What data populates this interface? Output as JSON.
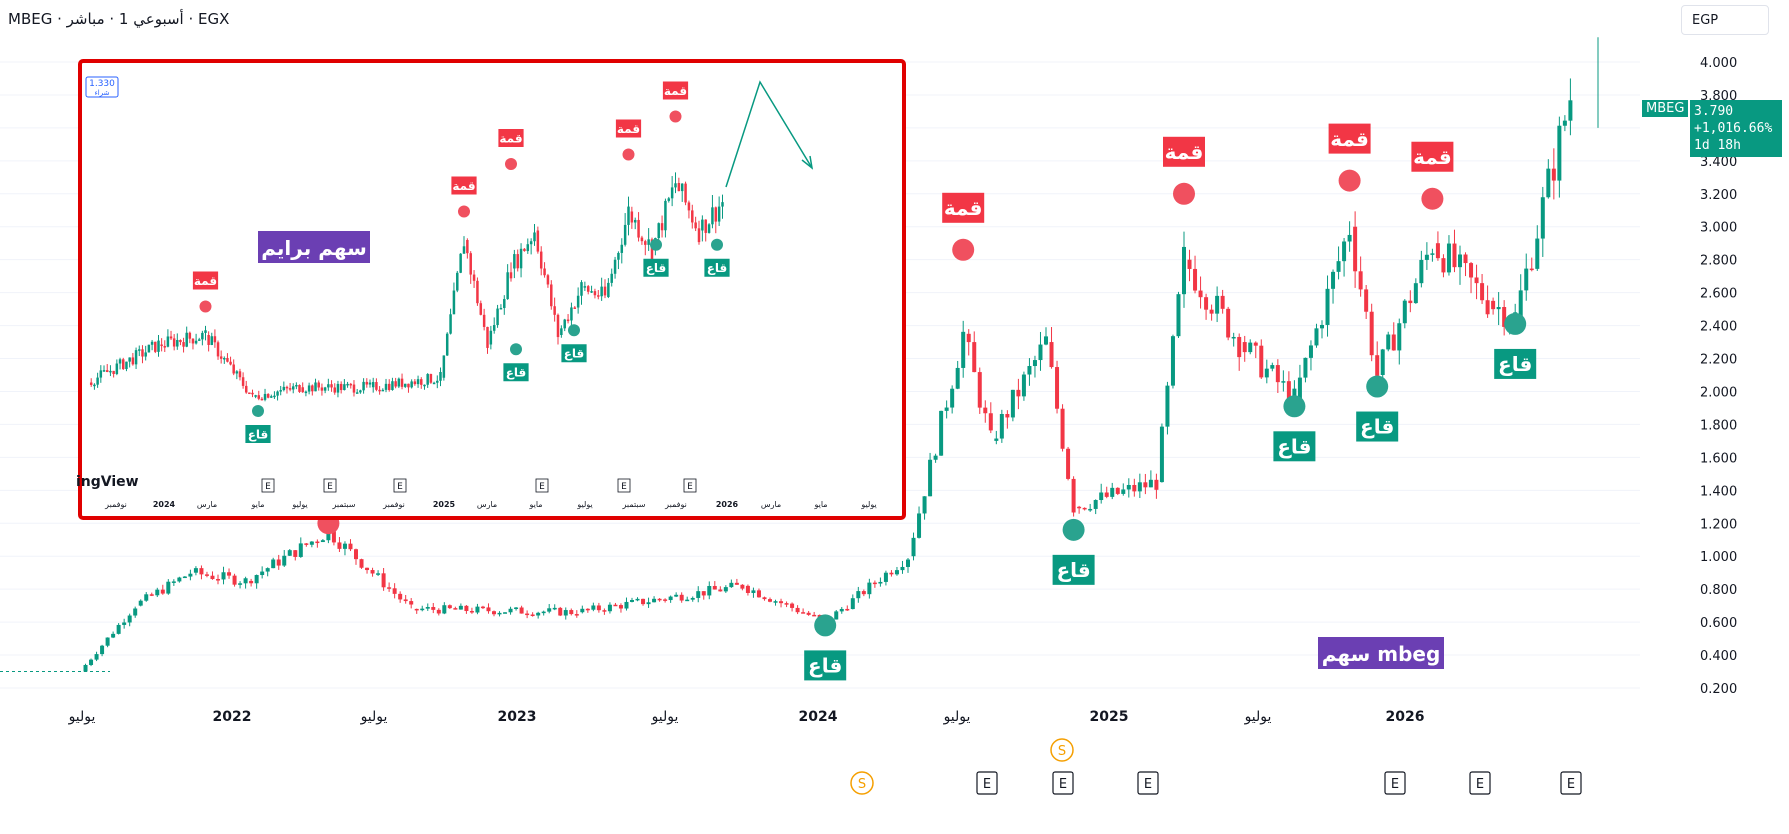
{
  "header": {
    "title": "MBEG · أسبوعي 1 · مباشر · EGX"
  },
  "currency_selector": {
    "value": "EGP"
  },
  "price_badge": {
    "symbol": "MBEG",
    "price": "3.790",
    "change": "+1,016.66%",
    "countdown": "1d 18h"
  },
  "colors": {
    "up": "#089981",
    "down": "#f23645",
    "peak_label": "#f23645",
    "trough_label": "#089981",
    "note_bg": "#6b3fb3",
    "frame": "#e00000",
    "event_marker": "#131722",
    "split_marker": "#f59f00"
  },
  "chart_data": [
    {
      "type": "candlestick",
      "title": "",
      "y_axis": {
        "ticks": [
          "0.200",
          "0.400",
          "0.600",
          "0.800",
          "1.000",
          "1.200",
          "1.400",
          "1.600",
          "1.800",
          "2.000",
          "2.200",
          "2.400",
          "2.600",
          "2.800",
          "3.000",
          "3.200",
          "3.400",
          "3.600",
          "3.800",
          "4.000"
        ],
        "ylim": [
          0.14,
          4.2
        ]
      },
      "x_axis": {
        "ticks": [
          "يوليو",
          "2022",
          "يوليو",
          "2023",
          "يوليو",
          "2024",
          "يوليو",
          "2025",
          "يوليو",
          "2026"
        ]
      },
      "series_close_approx": [
        {
          "period": "2021-07",
          "close": 0.3
        },
        {
          "period": "2021-09",
          "close": 0.7
        },
        {
          "period": "2021-11",
          "close": 0.9
        },
        {
          "period": "2022-01",
          "close": 0.85
        },
        {
          "period": "2022-04",
          "close": 1.15
        },
        {
          "period": "2022-07",
          "close": 0.68
        },
        {
          "period": "2023-01",
          "close": 0.66
        },
        {
          "period": "2023-07",
          "close": 0.82
        },
        {
          "period": "2023-10",
          "close": 0.6
        },
        {
          "period": "2024-01",
          "close": 1.0
        },
        {
          "period": "2024-03",
          "close": 2.35
        },
        {
          "period": "2024-04",
          "close": 1.7
        },
        {
          "period": "2024-06",
          "close": 2.3
        },
        {
          "period": "2024-07",
          "close": 1.3
        },
        {
          "period": "2024-10",
          "close": 1.45
        },
        {
          "period": "2024-11",
          "close": 2.8
        },
        {
          "period": "2025-01",
          "close": 2.3
        },
        {
          "period": "2025-03",
          "close": 1.95
        },
        {
          "period": "2025-05",
          "close": 3.0
        },
        {
          "period": "2025-06",
          "close": 2.1
        },
        {
          "period": "2025-08",
          "close": 2.9
        },
        {
          "period": "2025-10",
          "close": 2.55
        },
        {
          "period": "2025-11",
          "close": 2.45
        },
        {
          "period": "2026-01",
          "close": 3.79
        }
      ],
      "annotations": {
        "peaks": [
          {
            "label": "قمة",
            "price": 1.2,
            "period": "2022-04"
          },
          {
            "label": "قمة",
            "price": 2.86,
            "period": "2024-03"
          },
          {
            "label": "قمة",
            "price": 3.2,
            "period": "2024-11"
          },
          {
            "label": "قمة",
            "price": 3.28,
            "period": "2025-05"
          },
          {
            "label": "قمة",
            "price": 3.17,
            "period": "2025-08"
          }
        ],
        "troughs": [
          {
            "label": "قاع",
            "price": 0.58,
            "period": "2023-10"
          },
          {
            "label": "قاع",
            "price": 1.16,
            "period": "2024-07"
          },
          {
            "label": "قاع",
            "price": 1.91,
            "period": "2025-03"
          },
          {
            "label": "قاع",
            "price": 2.03,
            "period": "2025-06"
          },
          {
            "label": "قاع",
            "price": 2.41,
            "period": "2025-11"
          }
        ],
        "note": "سهم mbeg",
        "event_markers": [
          "S",
          "S",
          "E",
          "E",
          "E",
          "E",
          "E",
          "E"
        ]
      }
    },
    {
      "type": "candlestick",
      "title": "",
      "note": "سهم برايم",
      "header_price_chip": "1.330",
      "header_price_chip_sub": "شراء",
      "logo_fragment": "ingView",
      "x_axis": {
        "ticks": [
          "نوفمبر",
          "2024",
          "مارس",
          "مايو",
          "يوليو",
          "سبتمبر",
          "نوفمبر",
          "2025",
          "مارس",
          "مايو",
          "يوليو",
          "سبتمبر",
          "نوفمبر",
          "2026",
          "مارس",
          "مايو",
          "يوليو"
        ]
      },
      "annotations": {
        "peaks": [
          {
            "label": "قمة"
          },
          {
            "label": "قمة"
          },
          {
            "label": "قمة"
          },
          {
            "label": "قمة"
          },
          {
            "label": "قمة"
          }
        ],
        "troughs": [
          {
            "label": "قاع"
          },
          {
            "label": "قاع"
          },
          {
            "label": "قاع"
          },
          {
            "label": "قاع"
          },
          {
            "label": "قاع"
          },
          {
            "label": "قاع"
          }
        ],
        "event_markers": [
          "E",
          "E",
          "E",
          "E",
          "E",
          "E"
        ]
      }
    }
  ]
}
